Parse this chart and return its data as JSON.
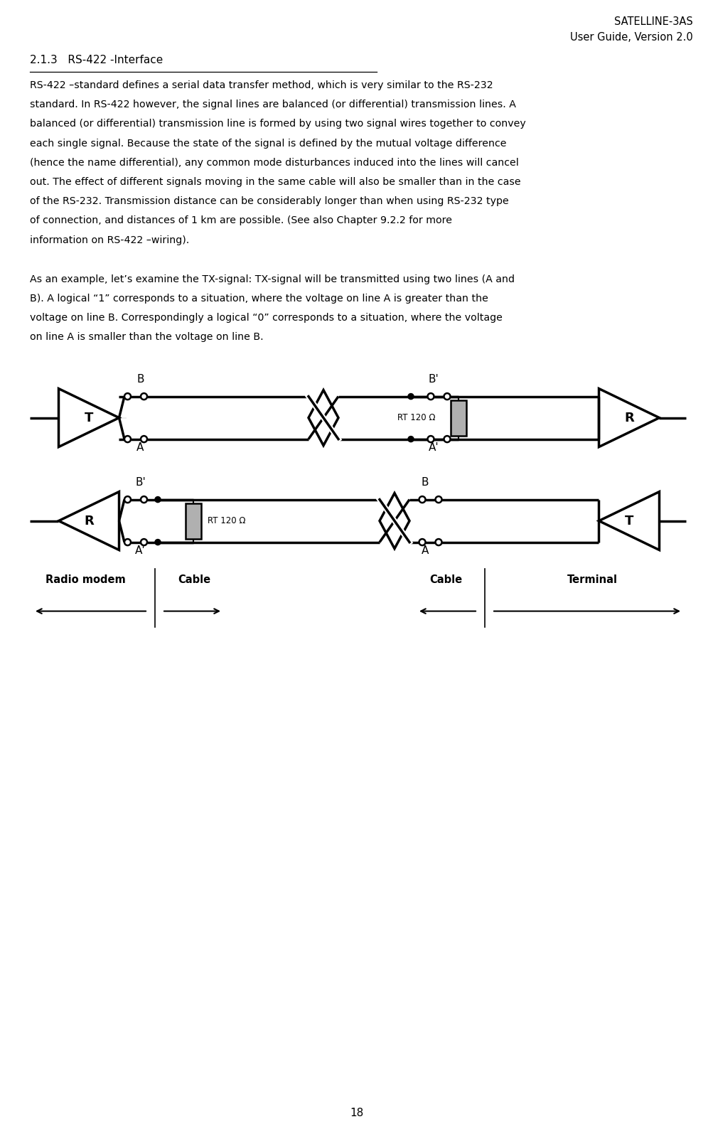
{
  "title_right_line1": "SATELLINE-3AS",
  "title_right_line2": "User Guide, Version 2.0",
  "section_title": "2.1.3   RS-422 -Interface",
  "page_number": "18",
  "bg_color": "#ffffff",
  "text_color": "#000000",
  "body1_lines": [
    "RS-422 –standard defines a serial data transfer method, which is very similar to the RS-232",
    "standard. In RS-422 however, the signal lines are balanced (or differential) transmission lines. A",
    "balanced (or differential) transmission line is formed by using two signal wires together to convey",
    "each single signal. Because the state of the signal is defined by the mutual voltage difference",
    "(hence the name differential), any common mode disturbances induced into the lines will cancel",
    "out. The effect of different signals moving in the same cable will also be smaller than in the case",
    "of the RS-232. Transmission distance can be considerably longer than when using RS-232 type",
    "of connection, and distances of 1 km are possible. (See also Chapter 9.2.2 for more",
    "information on RS-422 –wiring)."
  ],
  "body2_lines": [
    "As an example, let’s examine the TX-signal: TX-signal will be transmitted using two lines (A and",
    "B). A logical “1” corresponds to a situation, where the voltage on line A is greater than the",
    "voltage on line B. Correspondingly a logical “0” corresponds to a situation, where the voltage",
    "on line A is smaller than the voltage on line B."
  ],
  "resistor_color": "#b0b0b0",
  "lw_main": 2.5,
  "lw_thin": 1.5,
  "circle_r": 0.045
}
